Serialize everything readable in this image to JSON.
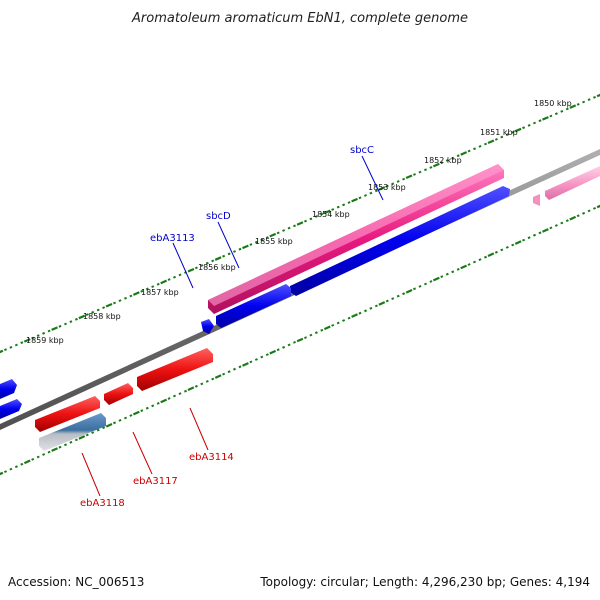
{
  "title": "Aromatoleum aromaticum EbN1, complete genome",
  "accession": "Accession: NC_006513",
  "topology": "Topology: circular; Length: 4,296,230 bp; Genes: 4,194",
  "colors": {
    "backbone": "#808080",
    "ticks": "#1a7a1a",
    "forward_gene": "#e8197f",
    "forward_gene_light": "#f58fc0",
    "reverse_gene": "#0000ee",
    "reverse_red": "#ee1111",
    "rna_blue": "#3a6fa0",
    "label_blue": "#0000cc",
    "label_red": "#cc0000"
  },
  "ticks": [
    {
      "label": "1850 kbp"
    },
    {
      "label": "1851 kbp"
    },
    {
      "label": "1852 kbp"
    },
    {
      "label": "1853 kbp"
    },
    {
      "label": "1854 kbp"
    },
    {
      "label": "1855 kbp"
    },
    {
      "label": "1856 kbp"
    },
    {
      "label": "1857 kbp"
    },
    {
      "label": "1858 kbp"
    },
    {
      "label": "1859 kbp"
    }
  ],
  "gene_labels": {
    "sbcC": "sbcC",
    "sbcD": "sbcD",
    "ebA3113": "ebA3113",
    "ebA3114": "ebA3114",
    "ebA3117": "ebA3117",
    "ebA3118": "ebA3118"
  }
}
